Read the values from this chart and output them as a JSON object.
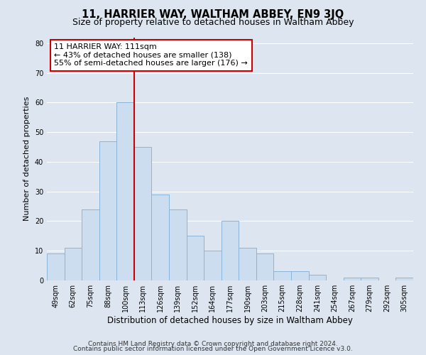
{
  "title": "11, HARRIER WAY, WALTHAM ABBEY, EN9 3JQ",
  "subtitle": "Size of property relative to detached houses in Waltham Abbey",
  "xlabel": "Distribution of detached houses by size in Waltham Abbey",
  "ylabel": "Number of detached properties",
  "bin_labels": [
    "49sqm",
    "62sqm",
    "75sqm",
    "88sqm",
    "100sqm",
    "113sqm",
    "126sqm",
    "139sqm",
    "152sqm",
    "164sqm",
    "177sqm",
    "190sqm",
    "203sqm",
    "215sqm",
    "228sqm",
    "241sqm",
    "254sqm",
    "267sqm",
    "279sqm",
    "292sqm",
    "305sqm"
  ],
  "bar_values": [
    9,
    11,
    24,
    47,
    60,
    45,
    29,
    24,
    15,
    10,
    20,
    11,
    9,
    3,
    3,
    2,
    0,
    1,
    1,
    0,
    1
  ],
  "bar_color": "#ccddf0",
  "bar_edge_color": "#8ab4d8",
  "vline_index": 4,
  "annotation_title": "11 HARRIER WAY: 111sqm",
  "annotation_line1": "← 43% of detached houses are smaller (138)",
  "annotation_line2": "55% of semi-detached houses are larger (176) →",
  "annotation_box_color": "#ffffff",
  "annotation_box_edge_color": "#cc0000",
  "vline_color": "#cc0000",
  "ylim": [
    0,
    82
  ],
  "yticks": [
    0,
    10,
    20,
    30,
    40,
    50,
    60,
    70,
    80
  ],
  "footer1": "Contains HM Land Registry data © Crown copyright and database right 2024.",
  "footer2": "Contains public sector information licensed under the Open Government Licence v3.0.",
  "background_color": "#dde6f0",
  "plot_background_color": "#dde6f0",
  "grid_color": "#ffffff",
  "title_fontsize": 10.5,
  "subtitle_fontsize": 9,
  "xlabel_fontsize": 8.5,
  "ylabel_fontsize": 8,
  "tick_fontsize": 7,
  "annotation_fontsize": 8,
  "footer_fontsize": 6.5
}
